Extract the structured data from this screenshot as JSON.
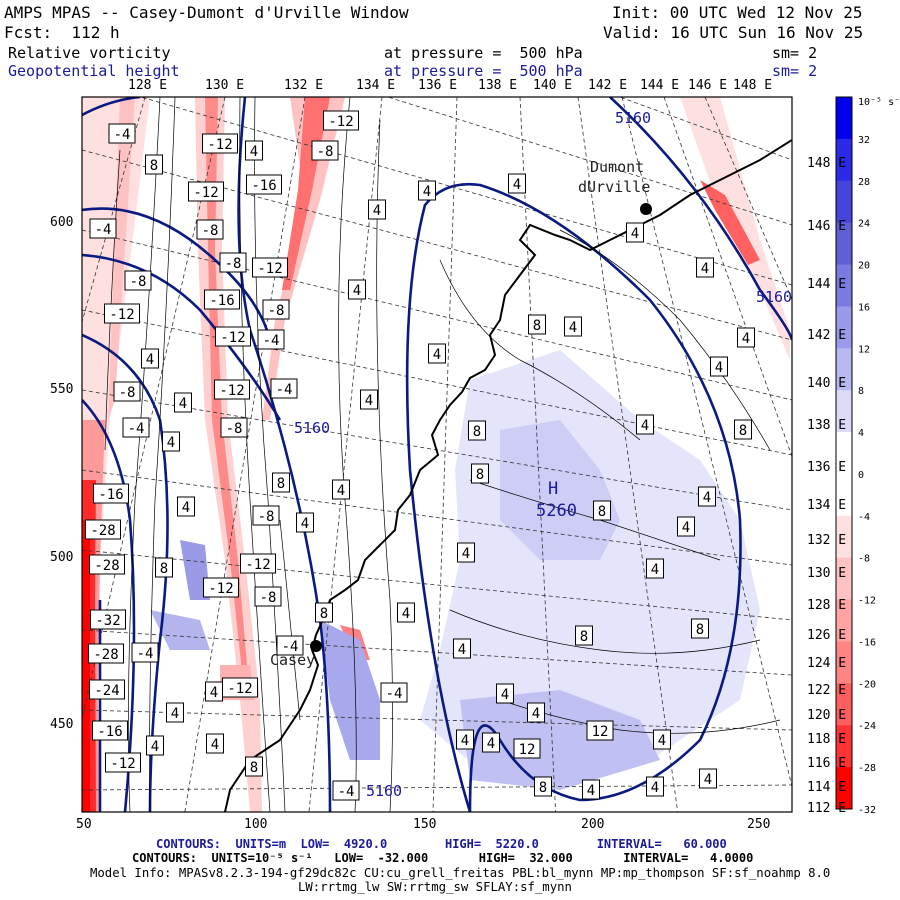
{
  "header": {
    "title": "AMPS MPAS -- Casey-Dumont d'Urville Window",
    "init": "Init: 00 UTC Wed 12 Nov 25",
    "fcst": "Fcst:  112 h",
    "valid": "Valid: 16 UTC Sun 16 Nov 25",
    "field1": "Relative vorticity",
    "field1_level": "at pressure =  500 hPa",
    "field1_sm": "sm= 2",
    "field2": "Geopotential height",
    "field2_level": "at pressure =  500 hPa",
    "field2_sm": "sm= 2"
  },
  "axes": {
    "top_lon": [
      "128 E",
      "130 E",
      "132 E",
      "134 E",
      "136 E",
      "138 E",
      "140 E",
      "142 E",
      "144 E",
      "146 E",
      "148 E"
    ],
    "right_lon": [
      "148 E",
      "146 E",
      "144 E",
      "142 E",
      "140 E",
      "138 E",
      "136 E",
      "134 E",
      "132 E",
      "130 E",
      "128 E",
      "126 E",
      "124 E",
      "122 E",
      "120 E",
      "118 E",
      "116 E",
      "114 E",
      "112 E"
    ],
    "left_y": [
      "600",
      "550",
      "500",
      "450"
    ],
    "bottom_x": [
      "50",
      "100",
      "150",
      "200",
      "250"
    ]
  },
  "places": {
    "dumont": "Dumont",
    "durville": "dUrville",
    "casey": "Casey",
    "high_letter": "H",
    "high_value": "5260"
  },
  "height_labels": [
    "5160",
    "5160",
    "5160",
    "5160"
  ],
  "vort_labels": {
    "neg4": "-4",
    "neg8": "-8",
    "neg12": "-12",
    "neg16": "-16",
    "neg24": "-24",
    "neg28": "-28",
    "neg32": "-32",
    "pos4": "4",
    "pos8": "8",
    "pos12": "12"
  },
  "colorbar": {
    "unit": "10⁻⁵ s⁻¹",
    "ticks": [
      "32",
      "28",
      "24",
      "20",
      "16",
      "12",
      "8",
      "4",
      "0",
      "-4",
      "-8",
      "-12",
      "-16",
      "-20",
      "-24",
      "-28",
      "-32"
    ],
    "colors": [
      "#0000ee",
      "#2a2ae8",
      "#4545dc",
      "#5f5fd6",
      "#7a7ae0",
      "#9a9aea",
      "#b9b9f2",
      "#dcdcf8",
      "#ffffff",
      "#ffffff",
      "#ffe0e0",
      "#ffc2c2",
      "#ffa3a3",
      "#ff8484",
      "#ff5e5e",
      "#ff3333",
      "#ff0000"
    ]
  },
  "footer": {
    "line1": "CONTOURS:  UNITS=m  LOW=  4920.0        HIGH=  5220.0        INTERVAL=   60.000",
    "line2": "CONTOURS:  UNITS=10⁻⁵ s⁻¹   LOW=  -32.000       HIGH=  32.000       INTERVAL=   4.0000",
    "line3": "Model Info: MPASv8.2.3-194-gf29dc82c CU:cu_grell_freitas PBL:bl_mynn MP:mp_thompson SF:sf_noahmp 8.0",
    "line4": "LW:rrtmg_lw SW:rrtmg_sw SFLAY:sf_mynn"
  }
}
